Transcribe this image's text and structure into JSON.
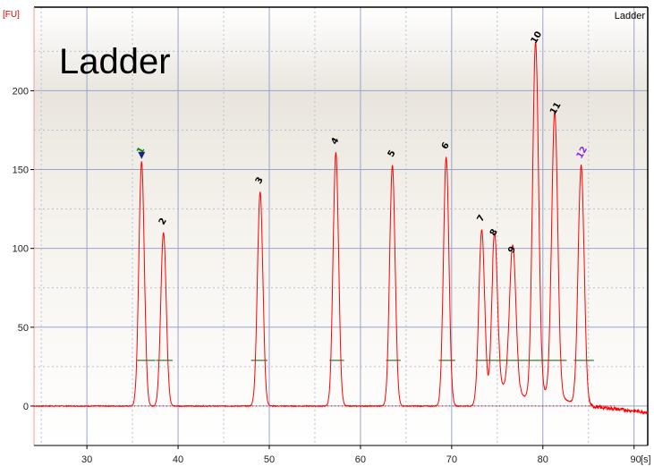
{
  "chart_data": {
    "type": "line",
    "title": "Ladder",
    "corner_label": "Ladder",
    "y_unit_label": "[FU]",
    "x_unit_label": "[s]",
    "xlim": [
      24.2,
      91.5
    ],
    "ylim": [
      -25,
      253
    ],
    "x_ticks": [
      30,
      40,
      50,
      60,
      70,
      80,
      90
    ],
    "y_ticks": [
      0,
      50,
      100,
      150,
      200
    ],
    "grid": true,
    "colors": {
      "trace": "#ff0000",
      "grid": "#9aa3c9",
      "axes": "#000000",
      "frame_left": "#ff9999",
      "marker": "#1a237e",
      "peak_label_default": "#000000",
      "peak_label_first": "#008000",
      "peak_label_last": "#8a2be2",
      "baseline_tick": "#006400"
    },
    "baseline": 0,
    "peaks": [
      {
        "label": "1",
        "x": 36.0,
        "height": 155,
        "width": 0.3
      },
      {
        "label": "2",
        "x": 38.4,
        "height": 110,
        "width": 0.3
      },
      {
        "label": "3",
        "x": 49.0,
        "height": 136,
        "width": 0.3
      },
      {
        "label": "4",
        "x": 57.3,
        "height": 161,
        "width": 0.3
      },
      {
        "label": "5",
        "x": 63.5,
        "height": 153,
        "width": 0.3
      },
      {
        "label": "6",
        "x": 69.4,
        "height": 158,
        "width": 0.3
      },
      {
        "label": "7",
        "x": 73.3,
        "height": 112,
        "width": 0.32
      },
      {
        "label": "8",
        "x": 74.7,
        "height": 103,
        "width": 0.32
      },
      {
        "label": "9",
        "x": 76.7,
        "height": 92,
        "width": 0.35
      },
      {
        "label": "10",
        "x": 79.2,
        "height": 225,
        "width": 0.33
      },
      {
        "label": "11",
        "x": 81.3,
        "height": 180,
        "width": 0.33
      },
      {
        "label": "12",
        "x": 84.2,
        "height": 152,
        "width": 0.33
      }
    ],
    "baseline_ticks": [
      {
        "x1": 35.5,
        "x2": 37.5,
        "y": 29
      },
      {
        "x1": 37.6,
        "x2": 39.4,
        "y": 29
      },
      {
        "x1": 48.0,
        "x2": 49.8,
        "y": 29
      },
      {
        "x1": 56.6,
        "x2": 58.2,
        "y": 29
      },
      {
        "x1": 62.8,
        "x2": 64.4,
        "y": 29
      },
      {
        "x1": 68.6,
        "x2": 70.4,
        "y": 29
      },
      {
        "x1": 72.6,
        "x2": 82.6,
        "y": 29
      },
      {
        "x1": 83.4,
        "x2": 85.6,
        "y": 29
      }
    ],
    "tail_end_value": -4
  }
}
